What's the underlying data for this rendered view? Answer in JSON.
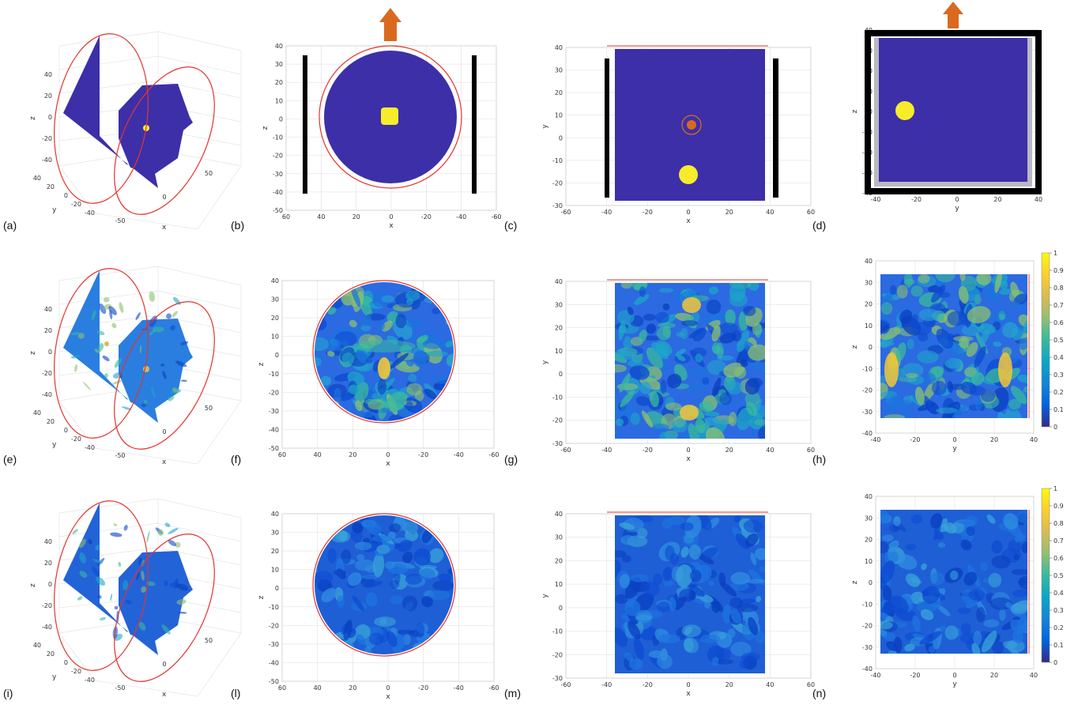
{
  "figure": {
    "panel_labels": [
      "(a)",
      "(b)",
      "(c)",
      "(d)",
      "(e)",
      "(f)",
      "(g)",
      "(h)",
      "(i)",
      "(l)",
      "(m)",
      "(n)"
    ],
    "axes_labels": {
      "x": "x",
      "y": "y",
      "z": "z"
    },
    "ticks": {
      "xz_x": [
        "60",
        "40",
        "20",
        "0",
        "-20",
        "-40",
        "-60"
      ],
      "xz_z": [
        "40",
        "30",
        "20",
        "10",
        "0",
        "-10",
        "-20",
        "-30",
        "-40",
        "-50"
      ],
      "xy_x": [
        "-60",
        "-40",
        "-20",
        "0",
        "20",
        "40",
        "60"
      ],
      "xy_y": [
        "40",
        "30",
        "20",
        "10",
        "0",
        "-10",
        "-20",
        "-30"
      ],
      "yz_y": [
        "-40",
        "-20",
        "0",
        "20",
        "40"
      ],
      "yz_z": [
        "40",
        "30",
        "20",
        "10",
        "0",
        "-10",
        "-20",
        "-30",
        "-40"
      ],
      "v3d_z": [
        "40",
        "20",
        "0",
        "-20",
        "-40"
      ],
      "v3d_x": [
        "-50",
        "0",
        "50"
      ],
      "v3d_y": [
        "40",
        "20",
        "0",
        "-20",
        "-40"
      ]
    },
    "colorbar_ticks": [
      "1",
      "0.9",
      "0.8",
      "0.7",
      "0.6",
      "0.5",
      "0.4",
      "0.3",
      "0.2",
      "0.1",
      "0"
    ],
    "colors": {
      "background_volume": "#3c2fa8",
      "inclusion": "#f7ec2a",
      "boundary": "#e3342f",
      "arrow": "#d9691f",
      "electrode": "#000000",
      "colormap": [
        "#352a87",
        "#0363e1",
        "#1485d4",
        "#06a7c6",
        "#38b99e",
        "#92bf73",
        "#d9ba56",
        "#fcce2e",
        "#f9fb0e"
      ]
    }
  }
}
